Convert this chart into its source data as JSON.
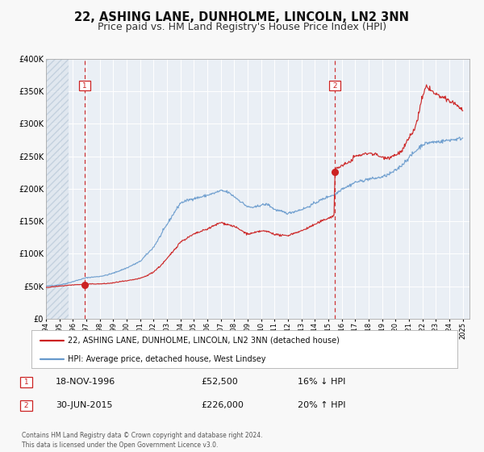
{
  "title": "22, ASHING LANE, DUNHOLME, LINCOLN, LN2 3NN",
  "subtitle": "Price paid vs. HM Land Registry's House Price Index (HPI)",
  "legend_label_red": "22, ASHING LANE, DUNHOLME, LINCOLN, LN2 3NN (detached house)",
  "legend_label_blue": "HPI: Average price, detached house, West Lindsey",
  "annotation1_label": "1",
  "annotation1_date": "18-NOV-1996",
  "annotation1_price": "£52,500",
  "annotation1_hpi": "16% ↓ HPI",
  "annotation2_label": "2",
  "annotation2_date": "30-JUN-2015",
  "annotation2_price": "£226,000",
  "annotation2_hpi": "20% ↑ HPI",
  "point1_year": 1996.88,
  "point1_value": 52500,
  "point2_year": 2015.5,
  "point2_value": 226000,
  "vline1_year": 1996.88,
  "vline2_year": 2015.5,
  "ylim": [
    0,
    400000
  ],
  "xlim_start": 1994.0,
  "xlim_end": 2025.5,
  "fig_bg_color": "#f8f8f8",
  "plot_bg_color": "#eaeff5",
  "hatch_bg_color": "#dde5ed",
  "red_color": "#cc2222",
  "blue_color": "#6699cc",
  "grid_color": "#ffffff",
  "footer_text": "Contains HM Land Registry data © Crown copyright and database right 2024.\nThis data is licensed under the Open Government Licence v3.0.",
  "title_fontsize": 10.5,
  "subtitle_fontsize": 9,
  "tick_fontsize": 6,
  "ytick_fontsize": 7,
  "legend_fontsize": 7,
  "annot_fontsize": 8,
  "footer_fontsize": 5.5,
  "blue_anchors_years": [
    1994.0,
    1994.5,
    1995.0,
    1995.5,
    1996.0,
    1996.5,
    1997.0,
    1997.5,
    1998.0,
    1998.5,
    1999.0,
    1999.5,
    2000.0,
    2000.5,
    2001.0,
    2001.5,
    2002.0,
    2002.5,
    2003.0,
    2003.5,
    2004.0,
    2004.5,
    2005.0,
    2005.5,
    2006.0,
    2006.5,
    2007.0,
    2007.5,
    2008.0,
    2008.5,
    2009.0,
    2009.5,
    2010.0,
    2010.5,
    2011.0,
    2011.5,
    2012.0,
    2012.5,
    2013.0,
    2013.5,
    2014.0,
    2014.5,
    2015.0,
    2015.5,
    2016.0,
    2016.5,
    2017.0,
    2017.5,
    2018.0,
    2018.5,
    2019.0,
    2019.5,
    2020.0,
    2020.5,
    2021.0,
    2021.5,
    2022.0,
    2022.5,
    2023.0,
    2023.5,
    2024.0,
    2024.5,
    2025.0
  ],
  "blue_anchors_vals": [
    50000,
    51000,
    52000,
    54000,
    57000,
    60000,
    63000,
    64000,
    65000,
    67000,
    70000,
    74000,
    78000,
    83000,
    88000,
    99000,
    110000,
    127000,
    145000,
    162000,
    178000,
    182000,
    185000,
    187000,
    190000,
    193000,
    197000,
    195000,
    188000,
    180000,
    172000,
    171000,
    175000,
    176000,
    168000,
    165000,
    162000,
    165000,
    168000,
    172000,
    178000,
    183000,
    188000,
    191000,
    200000,
    204000,
    210000,
    212000,
    215000,
    216000,
    218000,
    222000,
    228000,
    237000,
    248000,
    258000,
    268000,
    271000,
    272000,
    273000,
    275000,
    276000,
    278000
  ],
  "red_anchors_years": [
    1994.0,
    1994.5,
    1995.0,
    1995.5,
    1996.0,
    1996.5,
    1996.88,
    1997.0,
    1997.5,
    1998.0,
    1998.5,
    1999.0,
    1999.5,
    2000.0,
    2000.5,
    2001.0,
    2001.5,
    2002.0,
    2002.5,
    2003.0,
    2003.5,
    2004.0,
    2004.5,
    2005.0,
    2005.5,
    2006.0,
    2006.5,
    2007.0,
    2007.5,
    2008.0,
    2008.5,
    2009.0,
    2009.5,
    2010.0,
    2010.5,
    2011.0,
    2011.5,
    2012.0,
    2012.5,
    2013.0,
    2013.5,
    2014.0,
    2014.5,
    2015.0,
    2015.42,
    2015.5,
    2015.6,
    2016.0,
    2016.5,
    2017.0,
    2017.5,
    2018.0,
    2018.5,
    2019.0,
    2019.5,
    2020.0,
    2020.5,
    2021.0,
    2021.5,
    2022.0,
    2022.3,
    2022.5,
    2022.8,
    2023.0,
    2023.5,
    2024.0,
    2024.5,
    2025.0
  ],
  "red_anchors_vals": [
    48000,
    49000,
    50000,
    51000,
    52000,
    52500,
    52500,
    53000,
    53500,
    53500,
    54000,
    55000,
    57000,
    58000,
    60000,
    62000,
    66000,
    72000,
    81000,
    92000,
    105000,
    118000,
    124000,
    130000,
    134000,
    138000,
    143000,
    148000,
    145000,
    142000,
    136000,
    130000,
    132000,
    135000,
    134000,
    130000,
    128000,
    128000,
    132000,
    135000,
    140000,
    145000,
    150000,
    155000,
    158000,
    226000,
    232000,
    235000,
    240000,
    250000,
    252000,
    255000,
    253000,
    248000,
    248000,
    252000,
    258000,
    278000,
    295000,
    340000,
    358000,
    355000,
    348000,
    345000,
    340000,
    335000,
    330000,
    320000
  ]
}
